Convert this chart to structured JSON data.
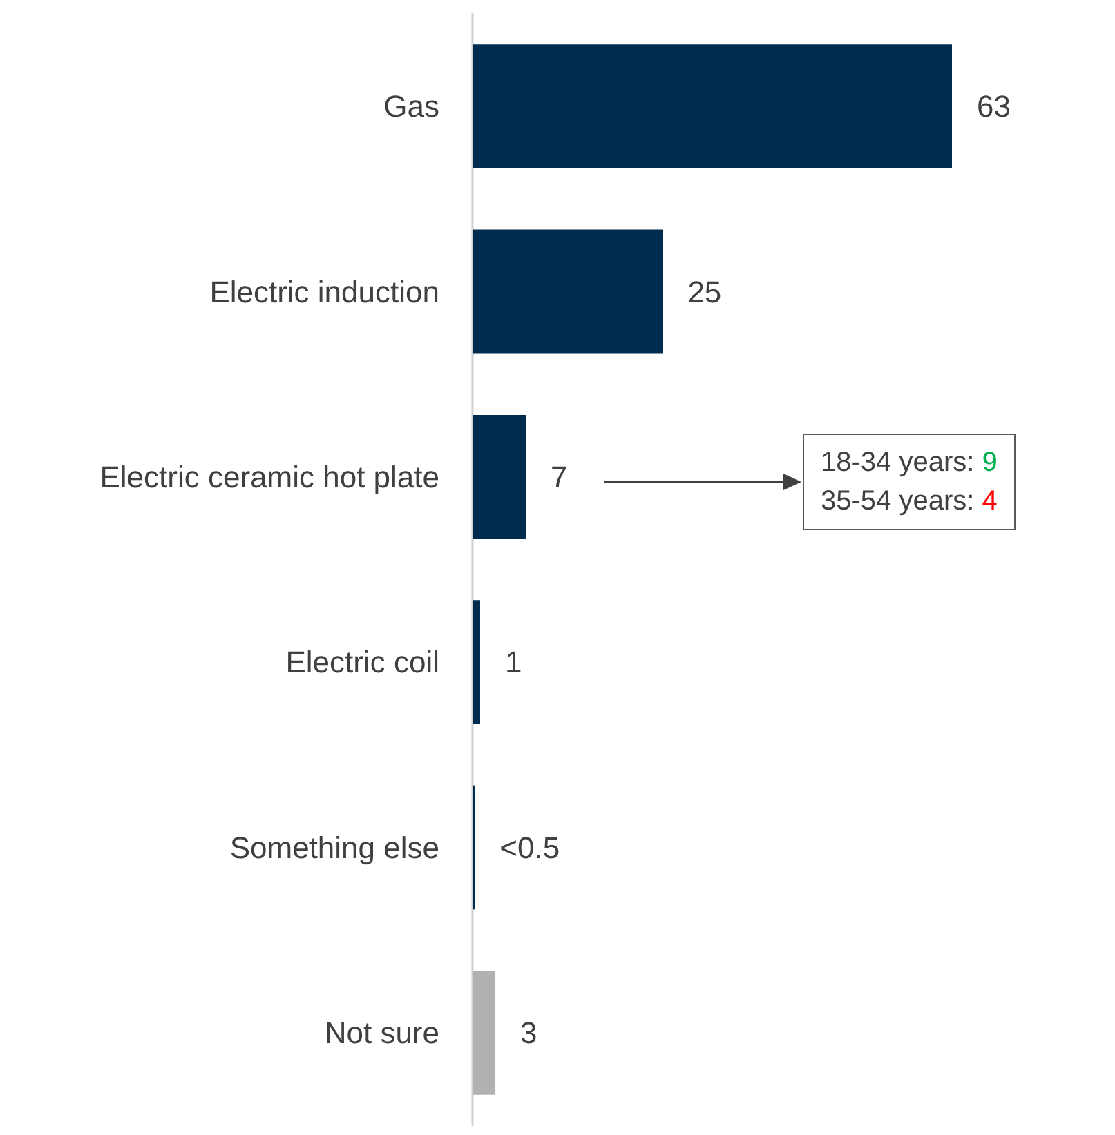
{
  "chart_data": {
    "type": "bar",
    "orientation": "horizontal",
    "categories": [
      "Gas",
      "Electric induction",
      "Electric ceramic hot plate",
      "Electric coil",
      "Something else",
      "Not sure"
    ],
    "values": [
      63,
      25,
      7,
      1,
      0.3,
      3
    ],
    "colors": [
      "#002d4f",
      "#002d4f",
      "#002d4f",
      "#002d4f",
      "#002d4f",
      "#b3b0b2"
    ],
    "value_labels": [
      "63",
      "25",
      "7",
      "1",
      "<0.5",
      "3"
    ],
    "annotations": [
      "18-34 years: 9\n35-54 years: 4"
    ]
  }
}
